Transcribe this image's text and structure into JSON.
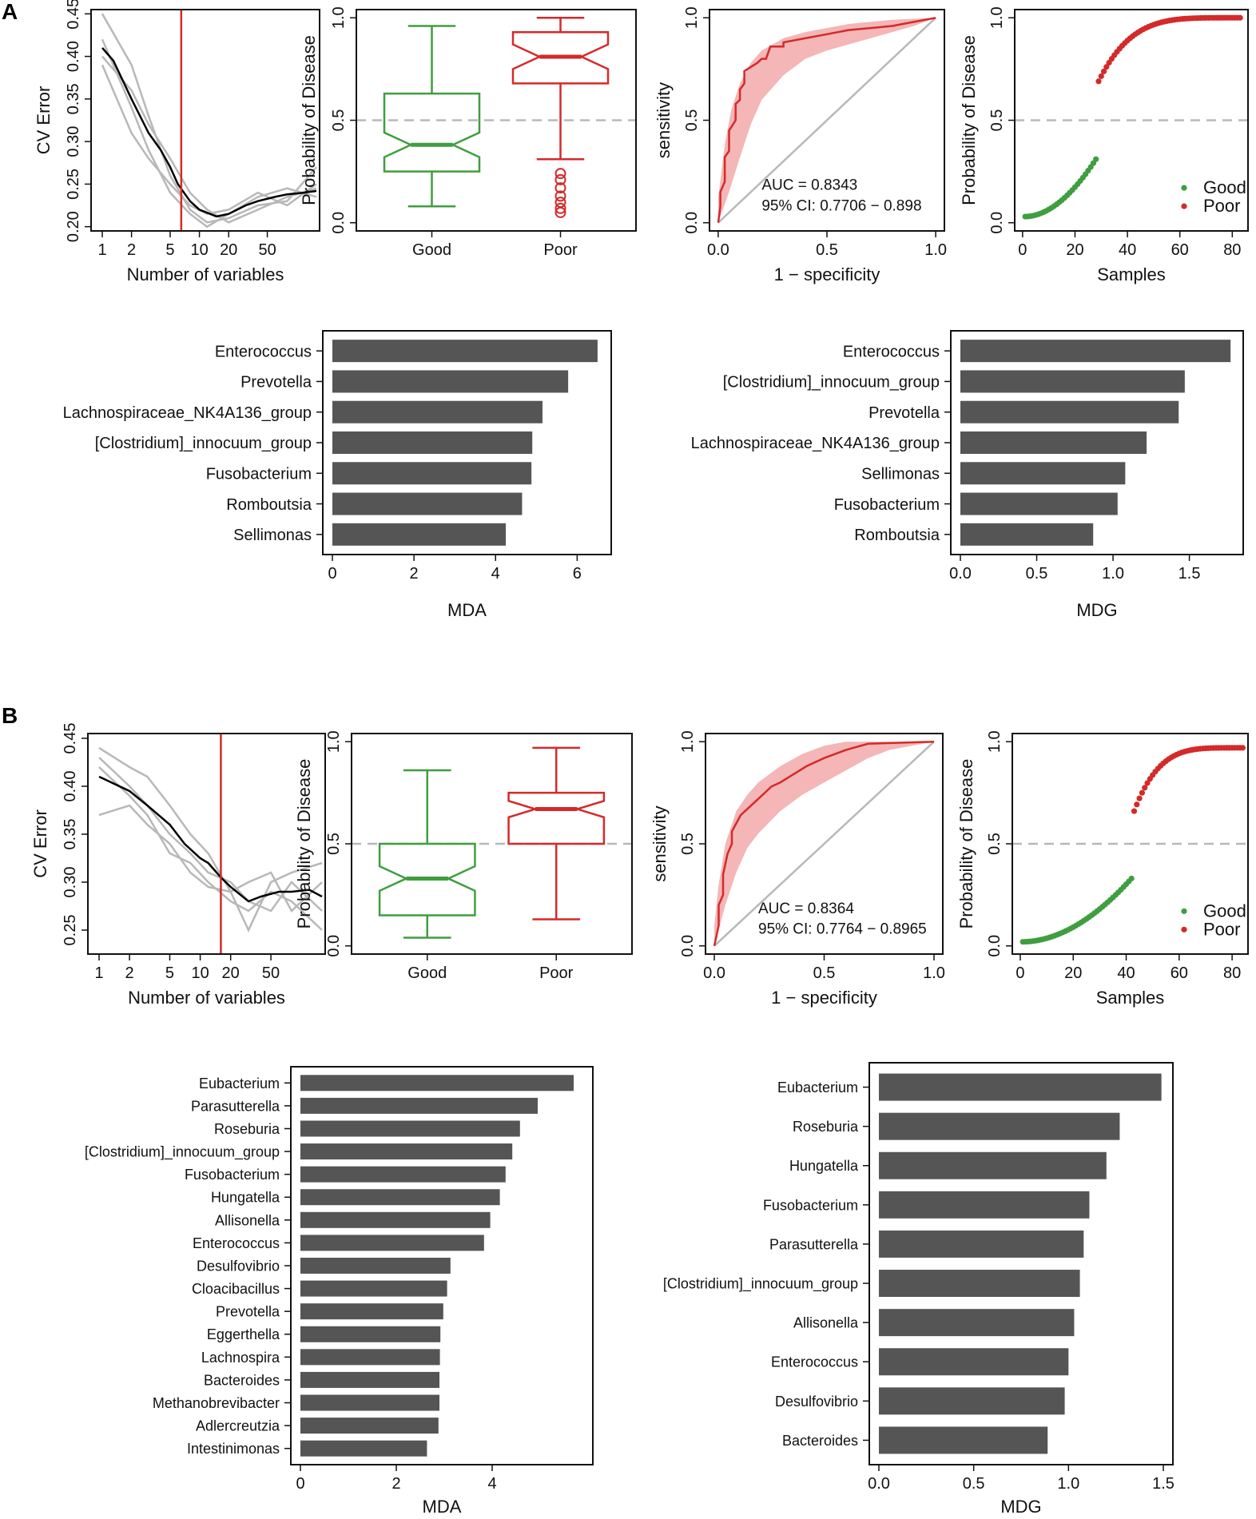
{
  "figure": {
    "panel_labels": [
      "A",
      "B"
    ]
  },
  "colors": {
    "good": "#3f9e3f",
    "poor": "#d42a2a",
    "band": "#f4b6b6",
    "bar": "#555555",
    "grey": "#b8b8b8"
  },
  "chart_data": [
    {
      "id": "A_cv",
      "type": "line",
      "xlabel": "Number of variables",
      "ylabel": "CV Error",
      "xticks": [
        1,
        2,
        5,
        10,
        20,
        50
      ],
      "yticks": [
        0.2,
        0.25,
        0.3,
        0.35,
        0.4,
        0.45
      ],
      "ytick_labels": [
        "0.20",
        "0.25",
        "0.30",
        "0.35",
        "0.40",
        "0.45"
      ],
      "xlim": [
        1,
        160
      ],
      "ylim": [
        0.195,
        0.455
      ],
      "cutoff": 6.5,
      "mean_curve": [
        [
          1,
          0.41
        ],
        [
          1.3,
          0.395
        ],
        [
          2,
          0.35
        ],
        [
          3,
          0.31
        ],
        [
          4,
          0.29
        ],
        [
          5,
          0.27
        ],
        [
          6,
          0.25
        ],
        [
          8,
          0.23
        ],
        [
          10,
          0.22
        ],
        [
          15,
          0.212
        ],
        [
          20,
          0.215
        ],
        [
          30,
          0.225
        ],
        [
          40,
          0.23
        ],
        [
          60,
          0.235
        ],
        [
          80,
          0.238
        ],
        [
          120,
          0.24
        ],
        [
          160,
          0.242
        ]
      ],
      "grey_curves": [
        [
          [
            1,
            0.45
          ],
          [
            2,
            0.39
          ],
          [
            3,
            0.33
          ],
          [
            5,
            0.26
          ],
          [
            8,
            0.22
          ],
          [
            12,
            0.205
          ],
          [
            20,
            0.21
          ],
          [
            40,
            0.225
          ],
          [
            80,
            0.23
          ],
          [
            160,
            0.27
          ]
        ],
        [
          [
            1,
            0.42
          ],
          [
            2,
            0.34
          ],
          [
            3,
            0.29
          ],
          [
            5,
            0.24
          ],
          [
            8,
            0.215
          ],
          [
            12,
            0.2
          ],
          [
            20,
            0.215
          ],
          [
            40,
            0.235
          ],
          [
            80,
            0.245
          ],
          [
            160,
            0.235
          ]
        ],
        [
          [
            1,
            0.4
          ],
          [
            2,
            0.36
          ],
          [
            3,
            0.32
          ],
          [
            5,
            0.28
          ],
          [
            8,
            0.24
          ],
          [
            12,
            0.22
          ],
          [
            20,
            0.205
          ],
          [
            40,
            0.22
          ],
          [
            80,
            0.235
          ],
          [
            160,
            0.245
          ]
        ],
        [
          [
            1,
            0.39
          ],
          [
            2,
            0.31
          ],
          [
            3,
            0.28
          ],
          [
            5,
            0.25
          ],
          [
            8,
            0.225
          ],
          [
            12,
            0.215
          ],
          [
            20,
            0.22
          ],
          [
            40,
            0.24
          ],
          [
            80,
            0.225
          ],
          [
            160,
            0.25
          ]
        ]
      ]
    },
    {
      "id": "A_box",
      "type": "box",
      "ylabel": "Probability of Disease",
      "categories": [
        "Good",
        "Poor"
      ],
      "yticks": [
        0.0,
        0.5,
        1.0
      ],
      "ytick_labels": [
        "0.0",
        "0.5",
        "1.0"
      ],
      "ylim": [
        -0.04,
        1.04
      ],
      "refline": 0.5,
      "boxes": [
        {
          "name": "Good",
          "min": 0.08,
          "q1": 0.25,
          "median": 0.38,
          "q3": 0.63,
          "max": 0.96,
          "outliers": []
        },
        {
          "name": "Poor",
          "min": 0.31,
          "q1": 0.68,
          "median": 0.81,
          "q3": 0.93,
          "max": 1.0,
          "outliers": [
            0.05,
            0.07,
            0.1,
            0.13,
            0.17,
            0.21,
            0.24
          ]
        }
      ]
    },
    {
      "id": "A_roc",
      "type": "line",
      "xlabel": "1 − specificity",
      "ylabel": "sensitivity",
      "ticks": [
        0.0,
        0.5,
        1.0
      ],
      "tick_labels": [
        "0.0",
        "0.5",
        "1.0"
      ],
      "auc_text": "AUC = 0.8343",
      "ci_text": "95% CI: 0.7706 − 0.898",
      "curve": [
        [
          0,
          0
        ],
        [
          0.01,
          0.08
        ],
        [
          0.01,
          0.15
        ],
        [
          0.03,
          0.2
        ],
        [
          0.03,
          0.32
        ],
        [
          0.05,
          0.35
        ],
        [
          0.05,
          0.45
        ],
        [
          0.08,
          0.5
        ],
        [
          0.08,
          0.58
        ],
        [
          0.1,
          0.6
        ],
        [
          0.1,
          0.65
        ],
        [
          0.12,
          0.68
        ],
        [
          0.12,
          0.74
        ],
        [
          0.15,
          0.76
        ],
        [
          0.18,
          0.78
        ],
        [
          0.2,
          0.8
        ],
        [
          0.22,
          0.8
        ],
        [
          0.24,
          0.86
        ],
        [
          0.3,
          0.86
        ],
        [
          0.3,
          0.88
        ],
        [
          0.4,
          0.9
        ],
        [
          0.5,
          0.92
        ],
        [
          0.6,
          0.94
        ],
        [
          0.7,
          0.95
        ],
        [
          0.8,
          0.96
        ],
        [
          0.9,
          0.98
        ],
        [
          1,
          1
        ]
      ],
      "band_upper": [
        [
          0,
          0.12
        ],
        [
          0.03,
          0.38
        ],
        [
          0.06,
          0.55
        ],
        [
          0.1,
          0.68
        ],
        [
          0.15,
          0.78
        ],
        [
          0.2,
          0.84
        ],
        [
          0.3,
          0.9
        ],
        [
          0.4,
          0.93
        ],
        [
          0.6,
          0.97
        ],
        [
          0.8,
          0.99
        ],
        [
          1,
          1
        ]
      ],
      "band_lower": [
        [
          0,
          0
        ],
        [
          0.05,
          0.15
        ],
        [
          0.1,
          0.32
        ],
        [
          0.15,
          0.48
        ],
        [
          0.2,
          0.6
        ],
        [
          0.3,
          0.72
        ],
        [
          0.4,
          0.8
        ],
        [
          0.5,
          0.84
        ],
        [
          0.7,
          0.9
        ],
        [
          0.9,
          0.96
        ],
        [
          1,
          1
        ]
      ]
    },
    {
      "id": "A_scatter",
      "type": "scatter",
      "xlabel": "Samples",
      "ylabel": "Probability of Disease",
      "xticks": [
        0,
        20,
        40,
        60,
        80
      ],
      "yticks": [
        0.0,
        0.5,
        1.0
      ],
      "ytick_labels": [
        "0.0",
        "0.5",
        "1.0"
      ],
      "xlim": [
        -3,
        86
      ],
      "ylim": [
        -0.04,
        1.04
      ],
      "refline": 0.5,
      "good_n": 28,
      "good_start": 0.03,
      "good_end": 0.31,
      "poor_n": 55,
      "poor_start": 0.69,
      "poor_end": 1.0,
      "legend": [
        "Good",
        "Poor"
      ]
    },
    {
      "id": "A_mda",
      "type": "bar",
      "orientation": "horizontal",
      "xlabel": "MDA",
      "categories": [
        "Enterococcus",
        "Prevotella",
        "Lachnospiraceae_NK4A136_group",
        "[Clostridium]_innocuum_group",
        "Fusobacterium",
        "Romboutsia",
        "Sellimonas"
      ],
      "values": [
        6.5,
        5.78,
        5.15,
        4.9,
        4.88,
        4.65,
        4.25
      ],
      "xticks": [
        0,
        2,
        4,
        6
      ],
      "xlim": [
        0,
        6.6
      ]
    },
    {
      "id": "A_mdg",
      "type": "bar",
      "orientation": "horizontal",
      "xlabel": "MDG",
      "categories": [
        "Enterococcus",
        "[Clostridium]_innocuum_group",
        "Prevotella",
        "Lachnospiraceae_NK4A136_group",
        "Sellimonas",
        "Fusobacterium",
        "Romboutsia"
      ],
      "values": [
        1.77,
        1.47,
        1.43,
        1.22,
        1.08,
        1.03,
        0.87
      ],
      "xticks": [
        0.0,
        0.5,
        1.0,
        1.5
      ],
      "xtick_labels": [
        "0.0",
        "0.5",
        "1.0",
        "1.5"
      ],
      "xlim": [
        0,
        1.79
      ]
    },
    {
      "id": "B_cv",
      "type": "line",
      "xlabel": "Number of variables",
      "ylabel": "CV Error",
      "xticks": [
        1,
        2,
        5,
        10,
        20,
        50
      ],
      "yticks": [
        0.25,
        0.3,
        0.35,
        0.4,
        0.45
      ],
      "ytick_labels": [
        "0.25",
        "0.30",
        "0.35",
        "0.40",
        "0.45"
      ],
      "xlim": [
        1,
        160
      ],
      "ylim": [
        0.225,
        0.455
      ],
      "cutoff": 16,
      "mean_curve": [
        [
          1,
          0.41
        ],
        [
          2,
          0.395
        ],
        [
          3,
          0.38
        ],
        [
          5,
          0.36
        ],
        [
          7,
          0.34
        ],
        [
          10,
          0.325
        ],
        [
          12,
          0.32
        ],
        [
          16,
          0.305
        ],
        [
          20,
          0.295
        ],
        [
          30,
          0.28
        ],
        [
          40,
          0.285
        ],
        [
          60,
          0.29
        ],
        [
          80,
          0.29
        ],
        [
          120,
          0.292
        ],
        [
          160,
          0.285
        ]
      ],
      "grey_curves": [
        [
          [
            1,
            0.44
          ],
          [
            2,
            0.42
          ],
          [
            3,
            0.41
          ],
          [
            5,
            0.38
          ],
          [
            8,
            0.35
          ],
          [
            12,
            0.33
          ],
          [
            20,
            0.29
          ],
          [
            30,
            0.25
          ],
          [
            50,
            0.3
          ],
          [
            80,
            0.31
          ],
          [
            160,
            0.32
          ]
        ],
        [
          [
            1,
            0.43
          ],
          [
            2,
            0.4
          ],
          [
            3,
            0.38
          ],
          [
            5,
            0.35
          ],
          [
            8,
            0.33
          ],
          [
            12,
            0.31
          ],
          [
            20,
            0.3
          ],
          [
            30,
            0.28
          ],
          [
            50,
            0.27
          ],
          [
            80,
            0.3
          ],
          [
            160,
            0.27
          ]
        ],
        [
          [
            1,
            0.42
          ],
          [
            2,
            0.39
          ],
          [
            3,
            0.37
          ],
          [
            5,
            0.33
          ],
          [
            8,
            0.32
          ],
          [
            12,
            0.3
          ],
          [
            20,
            0.28
          ],
          [
            30,
            0.27
          ],
          [
            50,
            0.29
          ],
          [
            80,
            0.28
          ],
          [
            160,
            0.25
          ]
        ],
        [
          [
            1,
            0.37
          ],
          [
            2,
            0.38
          ],
          [
            3,
            0.36
          ],
          [
            5,
            0.34
          ],
          [
            8,
            0.31
          ],
          [
            12,
            0.295
          ],
          [
            20,
            0.29
          ],
          [
            30,
            0.3
          ],
          [
            50,
            0.31
          ],
          [
            80,
            0.27
          ],
          [
            160,
            0.3
          ]
        ]
      ]
    },
    {
      "id": "B_box",
      "type": "box",
      "ylabel": "Probability of Disease",
      "categories": [
        "Good",
        "Poor"
      ],
      "yticks": [
        0.0,
        0.5,
        1.0
      ],
      "ytick_labels": [
        "0.0",
        "0.5",
        "1.0"
      ],
      "ylim": [
        -0.04,
        1.04
      ],
      "refline": 0.5,
      "boxes": [
        {
          "name": "Good",
          "min": 0.04,
          "q1": 0.15,
          "median": 0.33,
          "q3": 0.5,
          "max": 0.86,
          "outliers": []
        },
        {
          "name": "Poor",
          "min": 0.13,
          "q1": 0.5,
          "median": 0.67,
          "q3": 0.75,
          "max": 0.97,
          "outliers": []
        }
      ]
    },
    {
      "id": "B_roc",
      "type": "line",
      "xlabel": "1 − specificity",
      "ylabel": "sensitivity",
      "ticks": [
        0.0,
        0.5,
        1.0
      ],
      "tick_labels": [
        "0.0",
        "0.5",
        "1.0"
      ],
      "auc_text": "AUC = 0.8364",
      "ci_text": "95% CI: 0.7764 − 0.8965",
      "curve": [
        [
          0,
          0
        ],
        [
          0.01,
          0.05
        ],
        [
          0.02,
          0.1
        ],
        [
          0.02,
          0.2
        ],
        [
          0.04,
          0.25
        ],
        [
          0.04,
          0.35
        ],
        [
          0.06,
          0.45
        ],
        [
          0.08,
          0.5
        ],
        [
          0.08,
          0.56
        ],
        [
          0.1,
          0.6
        ],
        [
          0.12,
          0.64
        ],
        [
          0.14,
          0.66
        ],
        [
          0.18,
          0.7
        ],
        [
          0.22,
          0.74
        ],
        [
          0.26,
          0.78
        ],
        [
          0.3,
          0.8
        ],
        [
          0.36,
          0.84
        ],
        [
          0.42,
          0.88
        ],
        [
          0.5,
          0.92
        ],
        [
          0.6,
          0.96
        ],
        [
          0.7,
          0.99
        ],
        [
          1,
          1
        ]
      ],
      "band_upper": [
        [
          0,
          0.1
        ],
        [
          0.02,
          0.3
        ],
        [
          0.05,
          0.5
        ],
        [
          0.1,
          0.66
        ],
        [
          0.15,
          0.74
        ],
        [
          0.2,
          0.8
        ],
        [
          0.3,
          0.88
        ],
        [
          0.4,
          0.94
        ],
        [
          0.5,
          0.98
        ],
        [
          0.6,
          1
        ],
        [
          1,
          1
        ]
      ],
      "band_lower": [
        [
          0,
          0
        ],
        [
          0.05,
          0.2
        ],
        [
          0.1,
          0.36
        ],
        [
          0.15,
          0.48
        ],
        [
          0.2,
          0.55
        ],
        [
          0.3,
          0.66
        ],
        [
          0.4,
          0.74
        ],
        [
          0.5,
          0.8
        ],
        [
          0.6,
          0.86
        ],
        [
          0.7,
          0.92
        ],
        [
          0.8,
          0.96
        ],
        [
          1,
          1
        ]
      ]
    },
    {
      "id": "B_scatter",
      "type": "scatter",
      "xlabel": "Samples",
      "ylabel": "Probability of Disease",
      "xticks": [
        0,
        20,
        40,
        60,
        80
      ],
      "yticks": [
        0.0,
        0.5,
        1.0
      ],
      "ytick_labels": [
        "0.0",
        "0.5",
        "1.0"
      ],
      "xlim": [
        -3,
        86
      ],
      "ylim": [
        -0.04,
        1.04
      ],
      "refline": 0.5,
      "good_n": 42,
      "good_start": 0.02,
      "good_end": 0.33,
      "poor_n": 42,
      "poor_start": 0.66,
      "poor_end": 0.97,
      "legend": [
        "Good",
        "Poor"
      ]
    },
    {
      "id": "B_mda",
      "type": "bar",
      "orientation": "horizontal",
      "xlabel": "MDA",
      "categories": [
        "Eubacterium",
        "Parasutterella",
        "Roseburia",
        "[Clostridium]_innocuum_group",
        "Fusobacterium",
        "Hungatella",
        "Allisonella",
        "Enterococcus",
        "Desulfovibrio",
        "Cloacibacillus",
        "Prevotella",
        "Eggerthella",
        "Lachnospira",
        "Bacteroides",
        "Methanobrevibacter",
        "Adlercreutzia",
        "Intestinimonas"
      ],
      "values": [
        5.7,
        4.95,
        4.58,
        4.42,
        4.28,
        4.16,
        3.96,
        3.83,
        3.13,
        3.06,
        2.98,
        2.92,
        2.91,
        2.9,
        2.9,
        2.88,
        2.64
      ],
      "xticks": [
        0,
        2,
        4
      ],
      "xlim": [
        0,
        5.9
      ]
    },
    {
      "id": "B_mdg",
      "type": "bar",
      "orientation": "horizontal",
      "xlabel": "MDG",
      "categories": [
        "Eubacterium",
        "Roseburia",
        "Hungatella",
        "Fusobacterium",
        "Parasutterella",
        "[Clostridium]_innocuum_group",
        "Allisonella",
        "Enterococcus",
        "Desulfovibrio",
        "Bacteroides"
      ],
      "values": [
        1.49,
        1.27,
        1.2,
        1.11,
        1.08,
        1.06,
        1.03,
        1.0,
        0.98,
        0.89
      ],
      "xticks": [
        0.0,
        0.5,
        1.0,
        1.5
      ],
      "xtick_labels": [
        "0.0",
        "0.5",
        "1.0",
        "1.5"
      ],
      "xlim": [
        0,
        1.5
      ]
    }
  ]
}
